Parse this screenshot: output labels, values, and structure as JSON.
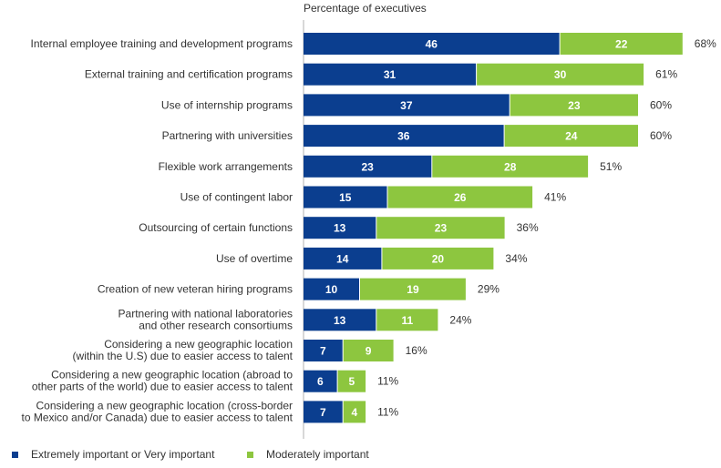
{
  "chart_data": {
    "type": "bar",
    "stacked": true,
    "orientation": "horizontal",
    "xlabel": "Percentage of executives",
    "categories": [
      [
        "Internal employee training and development programs"
      ],
      [
        "External training and certification programs"
      ],
      [
        "Use of internship programs"
      ],
      [
        "Partnering with universities"
      ],
      [
        "Flexible work arrangements"
      ],
      [
        "Use of contingent labor"
      ],
      [
        "Outsourcing of certain functions"
      ],
      [
        "Use of overtime"
      ],
      [
        "Creation of new veteran hiring programs"
      ],
      [
        "Partnering with national laboratories",
        "and other research consortiums"
      ],
      [
        "Considering a new geographic location",
        "(within the U.S) due to easier access to talent"
      ],
      [
        "Considering a new geographic location (abroad to",
        "other parts of the world) due to easier access to talent"
      ],
      [
        "Considering a new geographic location (cross-border",
        "to Mexico and/or Canada) due to easier access to talent"
      ]
    ],
    "series": [
      {
        "name": "Extremely important or Very important",
        "color": "#0b3e8f",
        "values": [
          46,
          31,
          37,
          36,
          23,
          15,
          13,
          14,
          10,
          13,
          7,
          6,
          7
        ]
      },
      {
        "name": "Moderately important",
        "color": "#8dc63f",
        "values": [
          22,
          30,
          23,
          24,
          28,
          26,
          23,
          20,
          19,
          11,
          9,
          5,
          4
        ]
      }
    ],
    "totals": [
      "68%",
      "61%",
      "60%",
      "60%",
      "51%",
      "41%",
      "36%",
      "34%",
      "29%",
      "24%",
      "16%",
      "11%",
      "11%"
    ],
    "xlim": [
      0,
      68
    ],
    "grid": false,
    "legend_position": "bottom-left"
  }
}
